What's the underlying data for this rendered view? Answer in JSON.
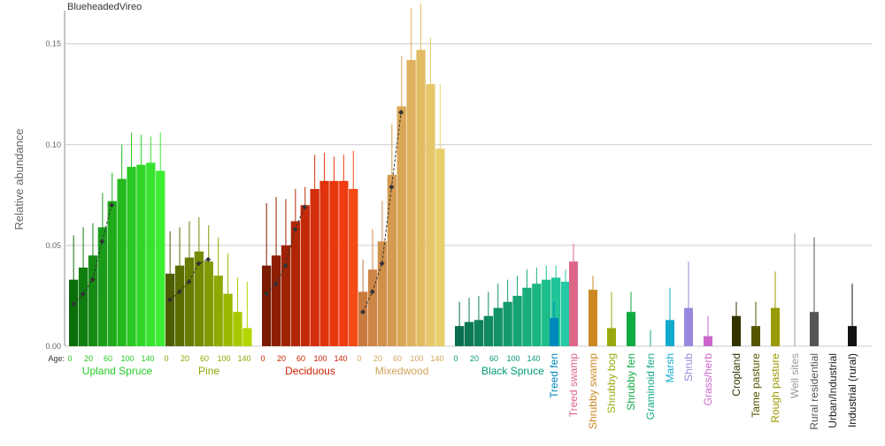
{
  "chart_data": {
    "type": "bar",
    "title": "BlueheadedVireo",
    "ylabel": "Relative abundance",
    "age_label": "Age:",
    "ylim": [
      0,
      0.17
    ],
    "yticks": [
      0.0,
      0.05,
      0.1,
      0.15
    ],
    "ytick_labels": [
      "0.00",
      "0.05",
      "0.10",
      "0.15"
    ],
    "grid": "horizontal",
    "age_tick_labels": [
      "0",
      "20",
      "60",
      "100",
      "140"
    ],
    "age_groups": [
      {
        "name": "Upland Spruce",
        "label_color": "#22cc22",
        "colors": [
          "#0a6e0a",
          "#0f7d0f",
          "#148c14",
          "#1a9b1a",
          "#1faa1a",
          "#25b91f",
          "#2ac824",
          "#30d729",
          "#36e22e",
          "#3ced33"
        ],
        "values": [
          0.033,
          0.039,
          0.045,
          0.059,
          0.072,
          0.083,
          0.089,
          0.09,
          0.091,
          0.087
        ],
        "upper": [
          0.055,
          0.059,
          0.061,
          0.076,
          0.086,
          0.1,
          0.106,
          0.105,
          0.104,
          0.106
        ],
        "lower": [
          0.01,
          0.013,
          0.016,
          0.025,
          0.038,
          0.053,
          0.06,
          0.064,
          0.065,
          0.06
        ],
        "trend": [
          0.021,
          0.026,
          0.033,
          0.052,
          0.07
        ]
      },
      {
        "name": "Pine",
        "label_color": "#88aa00",
        "colors": [
          "#4d5e00",
          "#5a6d00",
          "#677c00",
          "#748b00",
          "#819a00",
          "#8ea900",
          "#9bb800",
          "#a8c700",
          "#b5d600",
          "#c2e500"
        ],
        "values": [
          0.036,
          0.04,
          0.044,
          0.047,
          0.042,
          0.035,
          0.026,
          0.017,
          0.009
        ],
        "upper": [
          0.057,
          0.059,
          0.062,
          0.064,
          0.06,
          0.054,
          0.046,
          0.034,
          0.032
        ],
        "lower": [
          0.013,
          0.016,
          0.02,
          0.022,
          0.02,
          0.015,
          0.008,
          0.002,
          0.0
        ],
        "trend": [
          0.023,
          0.027,
          0.032,
          0.041,
          0.043
        ]
      },
      {
        "name": "Deciduous",
        "label_color": "#cc2200",
        "colors": [
          "#7a1a00",
          "#8c1e02",
          "#9e2204",
          "#b02606",
          "#c22a08",
          "#d42e0a",
          "#e0330c",
          "#ea380e",
          "#f03c10",
          "#f44a14"
        ],
        "values": [
          0.04,
          0.045,
          0.05,
          0.062,
          0.07,
          0.078,
          0.082,
          0.082,
          0.082,
          0.078
        ],
        "upper": [
          0.071,
          0.074,
          0.073,
          0.078,
          0.079,
          0.095,
          0.096,
          0.094,
          0.095,
          0.097
        ],
        "lower": [
          0.009,
          0.012,
          0.024,
          0.04,
          0.05,
          0.059,
          0.066,
          0.067,
          0.066,
          0.06
        ],
        "trend": [
          0.026,
          0.031,
          0.04,
          0.058,
          0.069
        ]
      },
      {
        "name": "Mixedwood",
        "label_color": "#d4a55a",
        "colors": [
          "#c97a3f",
          "#cd8545",
          "#d1904b",
          "#d59b51",
          "#d9a657",
          "#ddb15d",
          "#e1bc63",
          "#e5c769",
          "#e8cf6e",
          "#ead472"
        ],
        "values": [
          0.027,
          0.038,
          0.052,
          0.085,
          0.119,
          0.142,
          0.147,
          0.13,
          0.098
        ],
        "upper": [
          0.043,
          0.058,
          0.072,
          0.11,
          0.144,
          0.168,
          0.17,
          0.153,
          0.13
        ],
        "lower": [
          0.011,
          0.018,
          0.032,
          0.058,
          0.094,
          0.115,
          0.122,
          0.106,
          0.066
        ],
        "trend": [
          0.017,
          0.027,
          0.041,
          0.079,
          0.116
        ]
      },
      {
        "name": "Black Spruce",
        "label_color": "#009977",
        "colors": [
          "#0a6e4f",
          "#0c7754",
          "#0e805a",
          "#108960",
          "#129266",
          "#149b6c",
          "#16a472",
          "#18ad79",
          "#1ab580",
          "#1dbd8a",
          "#20c498",
          "#24caa6"
        ],
        "values": [
          0.01,
          0.012,
          0.013,
          0.015,
          0.019,
          0.022,
          0.025,
          0.029,
          0.031,
          0.033,
          0.034,
          0.032
        ],
        "upper": [
          0.022,
          0.024,
          0.025,
          0.027,
          0.031,
          0.033,
          0.035,
          0.038,
          0.039,
          0.04,
          0.04,
          0.038
        ],
        "lower": [
          0.0,
          0.001,
          0.002,
          0.004,
          0.007,
          0.011,
          0.015,
          0.02,
          0.023,
          0.026,
          0.028,
          0.026
        ],
        "trend": []
      }
    ],
    "single_habitats": [
      {
        "name": "Treed fen",
        "color": "#0088bb",
        "value": 0.014,
        "upper": 0.022,
        "lower": 0.006
      },
      {
        "name": "Treed swamp",
        "color": "#dd6688",
        "value": 0.042,
        "upper": 0.051,
        "lower": 0.032
      },
      {
        "name": "Shrubby swamp",
        "color": "#cc8822",
        "value": 0.028,
        "upper": 0.035,
        "lower": 0.019
      },
      {
        "name": "Shrubby bog",
        "color": "#99aa11",
        "value": 0.009,
        "upper": 0.027,
        "lower": 0.001
      },
      {
        "name": "Shrubby fen",
        "color": "#11aa44",
        "value": 0.017,
        "upper": 0.027,
        "lower": 0.009
      },
      {
        "name": "Graminoid fen",
        "color": "#11aa88",
        "value": 0.0,
        "upper": 0.008,
        "lower": 0.0
      },
      {
        "name": "Marsh",
        "color": "#11aacc",
        "value": 0.013,
        "upper": 0.029,
        "lower": 0.002
      },
      {
        "name": "Shrub",
        "color": "#9988dd",
        "value": 0.019,
        "upper": 0.042,
        "lower": 0.004
      },
      {
        "name": "Grass/herb",
        "color": "#cc66cc",
        "value": 0.005,
        "upper": 0.015,
        "lower": 0.0
      },
      {
        "name": "Cropland",
        "color": "#333300",
        "value": 0.015,
        "upper": 0.022,
        "lower": 0.007
      },
      {
        "name": "Tame pasture",
        "color": "#555500",
        "value": 0.01,
        "upper": 0.022,
        "lower": 0.001
      },
      {
        "name": "Rough pasture",
        "color": "#999900",
        "value": 0.019,
        "upper": 0.037,
        "lower": 0.006
      },
      {
        "name": "Well sites",
        "color": "#999999",
        "value": 0.0,
        "upper": 0.056,
        "lower": 0.0
      },
      {
        "name": "Rural residential",
        "color": "#555555",
        "value": 0.017,
        "upper": 0.054,
        "lower": 0.0
      },
      {
        "name": "Urban/Industrial",
        "color": "#222222",
        "value": 0.0,
        "upper": 0.0,
        "lower": 0.0
      },
      {
        "name": "Industrial (rural)",
        "color": "#111111",
        "value": 0.01,
        "upper": 0.031,
        "lower": 0.0
      }
    ]
  }
}
